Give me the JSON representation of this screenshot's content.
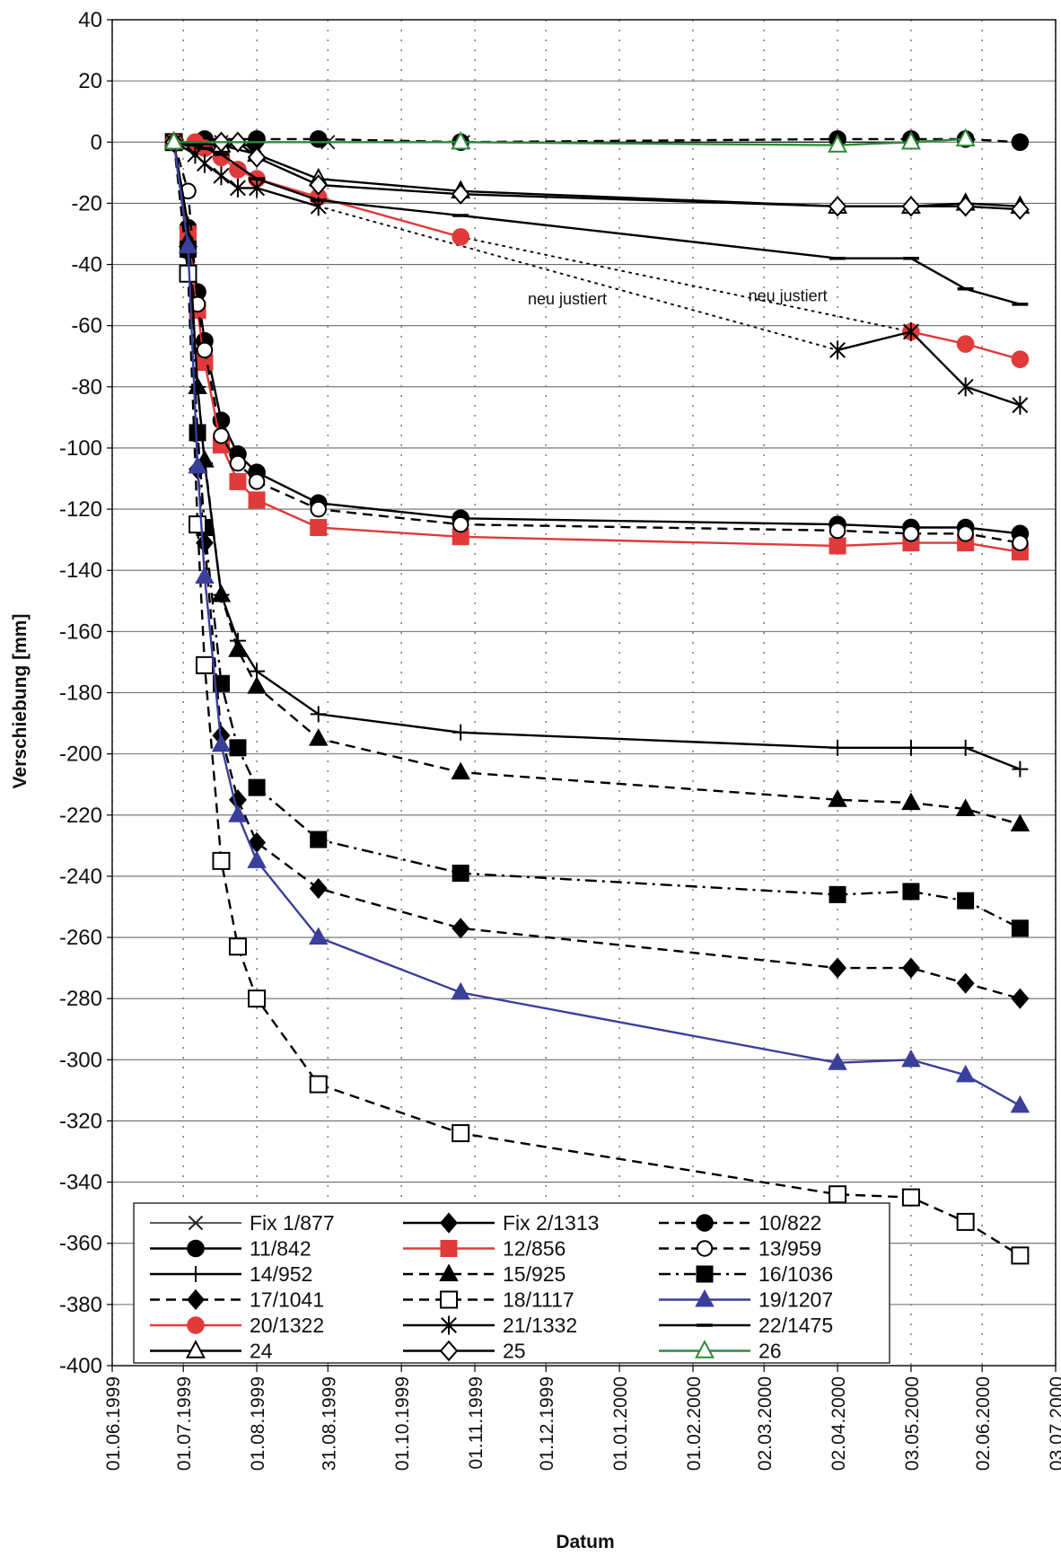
{
  "chart_data": {
    "type": "line",
    "title": "",
    "xlabel": "Datum",
    "ylabel": "Verschiebung [mm]",
    "ylim": [
      -400,
      40
    ],
    "y_ticks": [
      40,
      20,
      0,
      -20,
      -40,
      -60,
      -80,
      -100,
      -120,
      -140,
      -160,
      -180,
      -200,
      -220,
      -240,
      -260,
      -280,
      -300,
      -320,
      -340,
      -360,
      -380,
      -400
    ],
    "y_tick_labels": [
      "40",
      "20",
      "0",
      "-20",
      "-40",
      "-60",
      "-80",
      "-100",
      "-120",
      "-140",
      "-160",
      "-180",
      "-200",
      "-220",
      "-240",
      "-260",
      "-280",
      "-300",
      "-320",
      "-340",
      "-360",
      "-380",
      "-400"
    ],
    "xlim": [
      "1999-06-01",
      "2000-07-03"
    ],
    "x_ticks": [
      "1999-06-01",
      "1999-07-01",
      "1999-08-01",
      "1999-08-31",
      "1999-10-01",
      "1999-11-01",
      "1999-12-01",
      "2000-01-01",
      "2000-02-01",
      "2000-03-02",
      "2000-04-02",
      "2000-05-03",
      "2000-06-02",
      "2000-07-03"
    ],
    "x_tick_labels": [
      "01.06.1999",
      "01.07.1999",
      "01.08.1999",
      "31.08.1999",
      "01.10.1999",
      "01.11.1999",
      "01.12.1999",
      "01.01.2000",
      "01.02.2000",
      "02.03.2000",
      "02.04.2000",
      "03.05.2000",
      "02.06.2000",
      "03.07.2000"
    ],
    "grid": true,
    "legend_position": "bottom-left",
    "annotations": [
      {
        "text": "neu justiert",
        "x": "1999-12-10",
        "y": -53
      },
      {
        "text": "neu justiert",
        "x": "2000-03-12",
        "y": -52
      }
    ],
    "series": [
      {
        "name": "Fix 1/877",
        "color": "#222222",
        "marker": "x",
        "dash": "solid",
        "thin": true,
        "x": [
          "1999-06-27",
          "1999-07-17",
          "1999-08-31",
          "1999-10-27",
          "2000-04-02",
          "2000-05-03"
        ],
        "y": [
          0,
          0,
          0,
          0,
          0,
          0
        ]
      },
      {
        "name": "Fix 2/1313",
        "color": "#000000",
        "marker": "diamond-filled",
        "dash": "solid",
        "x": [
          "1999-06-27",
          "1999-07-06",
          "1999-07-17",
          "1999-07-31"
        ],
        "y": [
          0,
          -2,
          -1,
          -1
        ]
      },
      {
        "name": "10/822",
        "color": "#000000",
        "marker": "circle-filled",
        "dash": "dashed",
        "x": [
          "1999-06-27",
          "1999-07-10",
          "1999-08-01",
          "1999-08-27",
          "1999-10-26",
          "2000-04-02",
          "2000-05-03",
          "2000-05-26",
          "2000-06-18"
        ],
        "y": [
          0,
          1,
          1,
          1,
          0,
          1,
          1,
          1,
          0
        ]
      },
      {
        "name": "11/842",
        "color": "#000000",
        "marker": "circle-filled",
        "dash": "solid",
        "x": [
          "1999-06-27",
          "1999-07-03",
          "1999-07-07",
          "1999-07-10",
          "1999-07-17",
          "1999-07-24",
          "1999-08-01",
          "1999-08-27",
          "1999-10-26",
          "2000-04-02",
          "2000-05-03",
          "2000-05-26",
          "2000-06-18"
        ],
        "y": [
          0,
          -28,
          -49,
          -65,
          -91,
          -102,
          -108,
          -118,
          -123,
          -125,
          -126,
          -126,
          -128
        ]
      },
      {
        "name": "12/856",
        "color": "#e03a3a",
        "marker": "square-filled",
        "dash": "solid",
        "x": [
          "1999-06-27",
          "1999-07-03",
          "1999-07-07",
          "1999-07-10",
          "1999-07-17",
          "1999-07-24",
          "1999-08-01",
          "1999-08-27",
          "1999-10-26",
          "2000-04-02",
          "2000-05-03",
          "2000-05-26",
          "2000-06-18"
        ],
        "y": [
          0,
          -30,
          -55,
          -72,
          -99,
          -111,
          -117,
          -126,
          -129,
          -132,
          -131,
          -131,
          -134
        ]
      },
      {
        "name": "13/959",
        "color": "#000000",
        "marker": "circle-open",
        "dash": "dashed",
        "x": [
          "1999-06-27",
          "1999-07-03",
          "1999-07-07",
          "1999-07-10",
          "1999-07-17",
          "1999-07-24",
          "1999-08-01",
          "1999-08-27",
          "1999-10-26",
          "2000-04-02",
          "2000-05-03",
          "2000-05-26",
          "2000-06-18"
        ],
        "y": [
          0,
          -16,
          -53,
          -68,
          -96,
          -105,
          -111,
          -120,
          -125,
          -127,
          -128,
          -128,
          -131
        ]
      },
      {
        "name": "14/952",
        "color": "#000000",
        "marker": "plus",
        "dash": "solid",
        "x": [
          "1999-06-27",
          "1999-07-03",
          "1999-07-07",
          "1999-07-10",
          "1999-07-17",
          "1999-07-24",
          "1999-08-01",
          "1999-08-27",
          "1999-10-26",
          "2000-04-02",
          "2000-05-03",
          "2000-05-26",
          "2000-06-18"
        ],
        "y": [
          0,
          -27,
          -80,
          -105,
          -148,
          -163,
          -173,
          -187,
          -193,
          -198,
          -198,
          -198,
          -205
        ]
      },
      {
        "name": "15/925",
        "color": "#000000",
        "marker": "triangle-filled",
        "dash": "dashed",
        "x": [
          "1999-06-27",
          "1999-07-03",
          "1999-07-07",
          "1999-07-10",
          "1999-07-17",
          "1999-07-24",
          "1999-08-01",
          "1999-08-27",
          "1999-10-26",
          "2000-04-02",
          "2000-05-03",
          "2000-05-26",
          "2000-06-18"
        ],
        "y": [
          0,
          -32,
          -80,
          -104,
          -148,
          -166,
          -178,
          -195,
          -206,
          -215,
          -216,
          -218,
          -223
        ]
      },
      {
        "name": "16/1036",
        "color": "#000000",
        "marker": "square-filled",
        "dash": "dashdot",
        "x": [
          "1999-06-27",
          "1999-07-03",
          "1999-07-07",
          "1999-07-10",
          "1999-07-17",
          "1999-07-24",
          "1999-08-01",
          "1999-08-27",
          "1999-10-26",
          "2000-04-02",
          "2000-05-03",
          "2000-05-26",
          "2000-06-18"
        ],
        "y": [
          0,
          -35,
          -95,
          -126,
          -177,
          -198,
          -211,
          -228,
          -239,
          -246,
          -245,
          -248,
          -257
        ]
      },
      {
        "name": "17/1041",
        "color": "#000000",
        "marker": "diamond-filled",
        "dash": "dashed",
        "x": [
          "1999-06-27",
          "1999-07-03",
          "1999-07-07",
          "1999-07-10",
          "1999-07-17",
          "1999-07-24",
          "1999-08-01",
          "1999-08-27",
          "1999-10-26",
          "2000-04-02",
          "2000-05-03",
          "2000-05-26",
          "2000-06-18"
        ],
        "y": [
          0,
          -36,
          -107,
          -131,
          -194,
          -215,
          -229,
          -244,
          -257,
          -270,
          -270,
          -275,
          -280
        ]
      },
      {
        "name": "18/1117",
        "color": "#000000",
        "marker": "square-open",
        "dash": "dashed",
        "x": [
          "1999-06-27",
          "1999-07-03",
          "1999-07-07",
          "1999-07-10",
          "1999-07-17",
          "1999-07-24",
          "1999-08-01",
          "1999-08-27",
          "1999-10-26",
          "2000-04-02",
          "2000-05-03",
          "2000-05-26",
          "2000-06-18"
        ],
        "y": [
          0,
          -43,
          -125,
          -171,
          -235,
          -263,
          -280,
          -308,
          -324,
          -344,
          -345,
          -353,
          -364
        ]
      },
      {
        "name": "19/1207",
        "color": "#3a3f9a",
        "marker": "triangle-filled",
        "dash": "solid",
        "x": [
          "1999-06-27",
          "1999-07-03",
          "1999-07-07",
          "1999-07-10",
          "1999-07-17",
          "1999-07-24",
          "1999-08-01",
          "1999-08-27",
          "1999-10-26",
          "2000-04-02",
          "2000-05-03",
          "2000-05-26",
          "2000-06-18"
        ],
        "y": [
          0,
          -34,
          -106,
          -142,
          -197,
          -220,
          -235,
          -260,
          -278,
          -301,
          -300,
          -305,
          -315
        ]
      },
      {
        "name": "20/1322",
        "color": "#e03a3a",
        "marker": "circle-filled",
        "dash": "solid",
        "x": [
          "1999-06-27",
          "1999-07-06",
          "1999-07-10",
          "1999-07-17",
          "1999-07-24",
          "1999-08-01",
          "1999-08-27",
          "1999-10-26"
        ],
        "y": [
          0,
          0,
          -2,
          -5,
          -9,
          -12,
          -18,
          -31
        ]
      },
      {
        "name": "20/1322-b",
        "color": "#e03a3a",
        "marker": "circle-filled",
        "dash": "solid",
        "legend": false,
        "x": [
          "2000-05-03",
          "2000-05-26",
          "2000-06-18"
        ],
        "y": [
          -62,
          -66,
          -71
        ]
      },
      {
        "name": "21/1332",
        "color": "#000000",
        "marker": "asterisk",
        "dash": "solid",
        "x": [
          "1999-06-27",
          "1999-07-06",
          "1999-07-10",
          "1999-07-17",
          "1999-07-24",
          "1999-08-01",
          "1999-08-27"
        ],
        "y": [
          0,
          -4,
          -7,
          -11,
          -15,
          -15,
          -21
        ]
      },
      {
        "name": "21/1332-b",
        "color": "#000000",
        "marker": "asterisk",
        "dash": "solid",
        "legend": false,
        "x": [
          "2000-04-02",
          "2000-05-03",
          "2000-05-26",
          "2000-06-18"
        ],
        "y": [
          -68,
          -62,
          -80,
          -86
        ]
      },
      {
        "name": "22/1475",
        "color": "#000000",
        "marker": "dash",
        "dash": "solid",
        "x": [
          "1999-06-27",
          "1999-07-06",
          "1999-07-10",
          "1999-07-17",
          "1999-08-01",
          "1999-08-27",
          "1999-10-26",
          "2000-04-02",
          "2000-05-03",
          "2000-05-26",
          "2000-06-18"
        ],
        "y": [
          0,
          -1,
          -2,
          -4,
          -12,
          -19,
          -24,
          -38,
          -38,
          -48,
          -53
        ]
      },
      {
        "name": "24",
        "color": "#000000",
        "marker": "triangle-open",
        "dash": "solid",
        "x": [
          "1999-06-27",
          "1999-07-17",
          "1999-08-01",
          "1999-08-27",
          "1999-10-26",
          "2000-04-02",
          "2000-05-03",
          "2000-05-26",
          "2000-06-18"
        ],
        "y": [
          0,
          -1,
          -4,
          -12,
          -16,
          -21,
          -21,
          -20,
          -21
        ]
      },
      {
        "name": "25",
        "color": "#000000",
        "marker": "diamond-open",
        "dash": "solid",
        "x": [
          "1999-06-27",
          "1999-07-17",
          "1999-07-24",
          "1999-08-01",
          "1999-08-27",
          "1999-10-26",
          "2000-04-02",
          "2000-05-03",
          "2000-05-26",
          "2000-06-18"
        ],
        "y": [
          0,
          0,
          0,
          -5,
          -14,
          -17,
          -21,
          -21,
          -21,
          -22
        ]
      },
      {
        "name": "26",
        "color": "#2e8b3a",
        "marker": "triangle-open",
        "dash": "solid",
        "x": [
          "1999-06-27",
          "1999-10-26",
          "2000-04-02",
          "2000-05-03",
          "2000-05-26"
        ],
        "y": [
          0,
          0,
          -1,
          0,
          1
        ]
      }
    ],
    "dotted_links": [
      {
        "from": [
          "1999-08-27",
          -21
        ],
        "to": [
          "2000-04-02",
          -68
        ]
      },
      {
        "from": [
          "1999-10-26",
          -31
        ],
        "to": [
          "2000-05-03",
          -62
        ]
      }
    ]
  }
}
